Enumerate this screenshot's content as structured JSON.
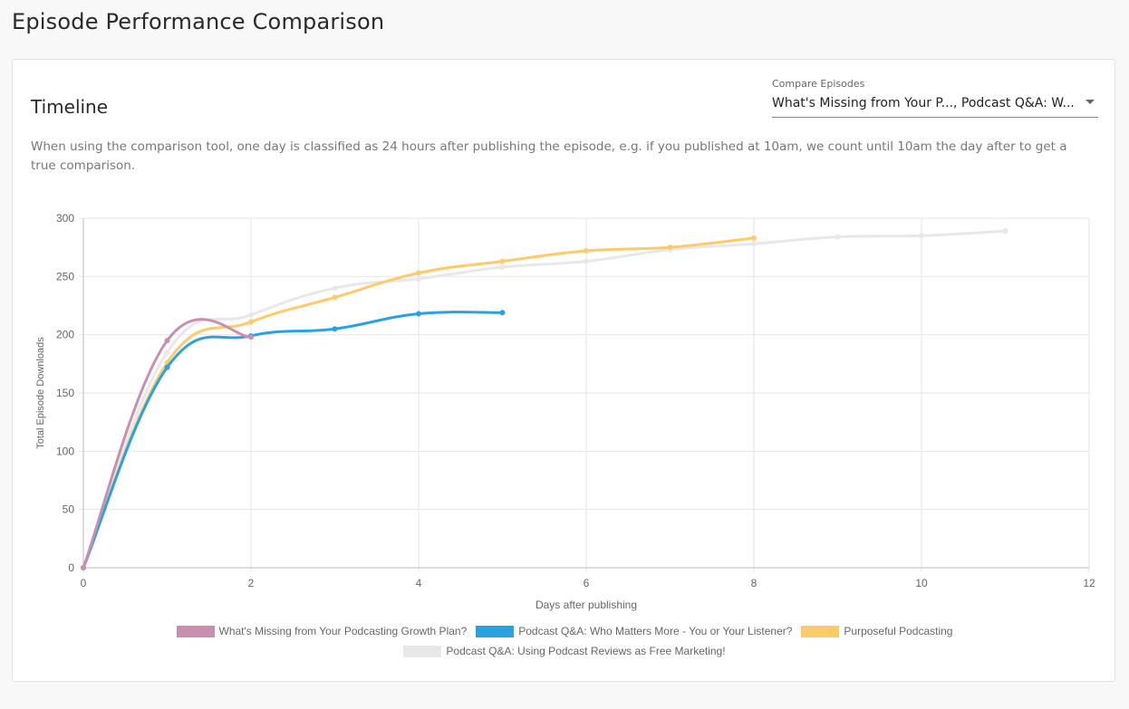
{
  "page": {
    "title": "Episode Performance Comparison"
  },
  "card": {
    "title": "Timeline",
    "compare_label": "Compare Episodes",
    "compare_value": "What's Missing from Your P..., Podcast Q&A: W...",
    "description": "When using the comparison tool, one day is classified as 24 hours after publishing the episode, e.g. if you published at 10am, we count until 10am the day after to get a true comparison."
  },
  "chart_data": {
    "type": "line",
    "xlabel": "Days after publishing",
    "ylabel": "Total Episode Downloads",
    "xlim": [
      0,
      12
    ],
    "ylim": [
      0,
      300
    ],
    "xticks": [
      0,
      2,
      4,
      6,
      8,
      10,
      12
    ],
    "yticks": [
      0,
      50,
      100,
      150,
      200,
      250,
      300
    ],
    "grid": true,
    "legend_position": "bottom",
    "series": [
      {
        "name": "What's Missing from Your Podcasting Growth Plan?",
        "color": "#c98fae",
        "x": [
          0,
          1,
          2
        ],
        "y": [
          0,
          195,
          198
        ]
      },
      {
        "name": "Podcast Q&A: Who Matters More - You or Your Listener?",
        "color": "#2ba2e0",
        "x": [
          0,
          1,
          2,
          3,
          4,
          5
        ],
        "y": [
          0,
          172,
          199,
          205,
          218,
          219
        ]
      },
      {
        "name": "Purposeful Podcasting",
        "color": "#fdcb69",
        "x": [
          0,
          1,
          2,
          3,
          4,
          5,
          6,
          7,
          8
        ],
        "y": [
          0,
          176,
          211,
          232,
          253,
          263,
          272,
          275,
          283
        ]
      },
      {
        "name": "Podcast Q&A: Using Podcast Reviews as Free Marketing!",
        "color": "#e8e8ea",
        "x": [
          0,
          1,
          2,
          3,
          4,
          5,
          6,
          7,
          8,
          9,
          10,
          11
        ],
        "y": [
          0,
          185,
          217,
          240,
          248,
          258,
          263,
          273,
          278,
          284,
          285,
          289
        ]
      }
    ]
  }
}
